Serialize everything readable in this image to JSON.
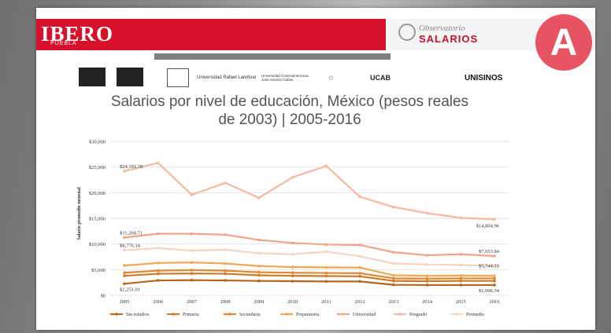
{
  "header": {
    "logo_text": "IBERO",
    "logo_sub": "PUEBLA",
    "observatory_line1": "Observatorio",
    "observatory_line2": "SALARIOS",
    "badge_letter": "A"
  },
  "partner_logos": [
    {
      "name": "logo-1",
      "text": ""
    },
    {
      "name": "logo-2",
      "text": ""
    },
    {
      "name": "logo-3",
      "text": ""
    },
    {
      "name": "logo-landivar",
      "text": "Universidad Rafael Landívar"
    },
    {
      "name": "logo-centroamericana",
      "text": "Universidad Centroamericana José Simeón Cañas"
    },
    {
      "name": "logo-6",
      "text": ""
    },
    {
      "name": "logo-ucab",
      "text": "UCAB"
    },
    {
      "name": "logo-uni",
      "text": "UNISINOS"
    }
  ],
  "chart_data": {
    "type": "line",
    "title": "Salarios por nivel de educación, México (pesos reales de 2003) | 2005-2016",
    "ylabel": "Salario promedio mensual",
    "xlabel": "",
    "x": [
      "2005",
      "2006",
      "2007",
      "2008",
      "2009",
      "2010",
      "2011",
      "2012",
      "2013",
      "2014",
      "2015",
      "2016"
    ],
    "ylim": [
      0,
      30000
    ],
    "yticks": [
      "$0",
      "$5,000",
      "$10,000",
      "$15,000",
      "$20,000",
      "$25,000",
      "$30,000"
    ],
    "grid": true,
    "legend_position": "bottom",
    "series": [
      {
        "name": "Sin estudios",
        "color": "#b5651d",
        "values": [
          2251,
          2900,
          2950,
          2900,
          2800,
          2750,
          2700,
          2700,
          2050,
          2000,
          2000,
          1996
        ]
      },
      {
        "name": "Primaria",
        "color": "#c97a2a",
        "values": [
          3800,
          4200,
          4250,
          4200,
          3900,
          3800,
          3750,
          3700,
          2800,
          2750,
          2800,
          2800
        ]
      },
      {
        "name": "Secundaria",
        "color": "#e08a30",
        "values": [
          4400,
          4800,
          4900,
          4800,
          4500,
          4400,
          4350,
          4300,
          3300,
          3250,
          3300,
          3300
        ]
      },
      {
        "name": "Preparatoria",
        "color": "#efa855",
        "values": [
          5800,
          6300,
          6400,
          6200,
          5700,
          5500,
          5450,
          5400,
          3900,
          3800,
          3850,
          3800
        ]
      },
      {
        "name": "Universidad",
        "color": "#f0a58a",
        "values": [
          11269,
          12000,
          12000,
          11800,
          10800,
          10200,
          9900,
          9800,
          8400,
          7800,
          8000,
          7654
        ]
      },
      {
        "name": "Posgrado",
        "color": "#f5b8a0",
        "values": [
          24192,
          25800,
          19600,
          21900,
          19000,
          23000,
          25200,
          19200,
          17200,
          16000,
          15100,
          14805
        ]
      },
      {
        "name": "Promedio",
        "color": "#f7d3c3",
        "values": [
          8776,
          9200,
          8700,
          8900,
          8200,
          8000,
          8500,
          7600,
          6200,
          6000,
          5900,
          5744
        ]
      }
    ],
    "data_labels": [
      {
        "text": "$24,191.78",
        "series": "Posgrado",
        "index": 0
      },
      {
        "text": "$11,268.71",
        "series": "Universidad",
        "index": 0
      },
      {
        "text": "$8,776.14",
        "series": "Promedio",
        "index": 0
      },
      {
        "text": "$2,251.01",
        "series": "Sin estudios",
        "index": 0
      },
      {
        "text": "$14,804.96",
        "series": "Posgrado",
        "index": 11
      },
      {
        "text": "$7,653.84",
        "series": "Universidad",
        "index": 11
      },
      {
        "text": "$5,744.18",
        "series": "Promedio",
        "index": 11
      },
      {
        "text": "$1,996.34",
        "series": "Sin estudios",
        "index": 11
      }
    ]
  }
}
